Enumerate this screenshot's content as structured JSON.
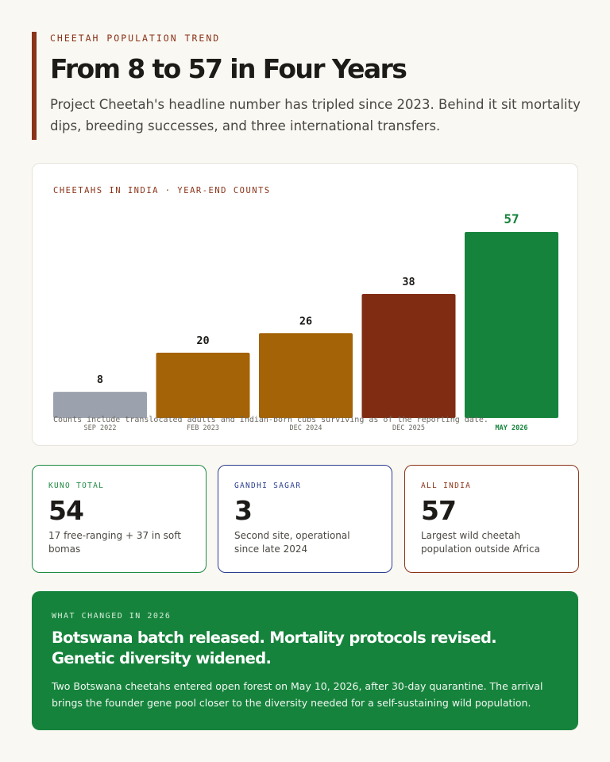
{
  "header": {
    "kicker": "CHEETAH POPULATION TREND",
    "title": "From 8 to 57 in Four Years",
    "dek": "Project Cheetah's headline number has tripled since 2023. Behind it sit mortality dips, breeding successes, and three international transfers."
  },
  "chart_data": {
    "type": "bar",
    "title": "CHEETAHS IN INDIA · YEAR-END COUNTS",
    "categories": [
      "SEP 2022",
      "FEB 2023",
      "DEC 2024",
      "DEC 2025",
      "MAY 2026"
    ],
    "values": [
      8,
      20,
      26,
      38,
      57
    ],
    "colors": [
      "#9ca2ad",
      "#a46306",
      "#a46306",
      "#802c12",
      "#16833c"
    ],
    "highlight_index": 4,
    "highlight_color": "#16833c",
    "ylim": [
      0,
      57
    ],
    "grid": false,
    "note": "Counts include translocated adults and Indian-born cubs surviving as of the reporting date."
  },
  "stats": [
    {
      "label": "KUNO TOTAL",
      "value": "54",
      "desc": "17 free-ranging + 37 in soft bomas"
    },
    {
      "label": "GANDHI SAGAR",
      "value": "3",
      "desc": "Second site, operational since late 2024"
    },
    {
      "label": "ALL INDIA",
      "value": "57",
      "desc": "Largest wild cheetah population outside Africa"
    }
  ],
  "callout": {
    "kicker": "WHAT CHANGED IN 2026",
    "headline": "Botswana batch released. Mortality protocols revised. Genetic diversity widened.",
    "body": "Two Botswana cheetahs entered open forest on May 10, 2026, after 30-day quarantine. The arrival brings the founder gene pool closer to the diversity needed for a self-sustaining wild population."
  }
}
